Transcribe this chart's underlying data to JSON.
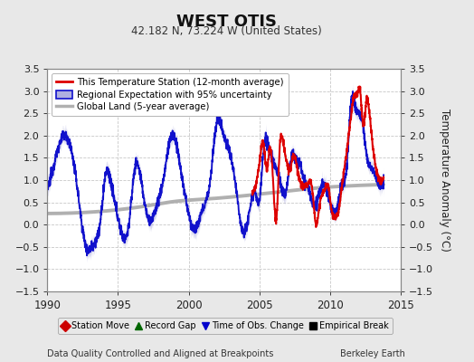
{
  "title": "WEST OTIS",
  "subtitle": "42.182 N, 73.224 W (United States)",
  "xlabel_bottom": "Data Quality Controlled and Aligned at Breakpoints",
  "xlabel_right": "Berkeley Earth",
  "ylabel": "Temperature Anomaly (°C)",
  "xlim": [
    1990,
    2015
  ],
  "ylim": [
    -1.5,
    3.5
  ],
  "yticks": [
    -1.5,
    -1.0,
    -0.5,
    0.0,
    0.5,
    1.0,
    1.5,
    2.0,
    2.5,
    3.0,
    3.5
  ],
  "xticks": [
    1990,
    1995,
    2000,
    2005,
    2010,
    2015
  ],
  "bg_color": "#e8e8e8",
  "plot_bg_color": "#ffffff",
  "grid_color": "#c8c8c8",
  "red_line_color": "#dd0000",
  "blue_line_color": "#1111cc",
  "blue_fill_color": "#b0b0e0",
  "gray_line_color": "#b0b0b0",
  "legend1_entries": [
    "This Temperature Station (12-month average)",
    "Regional Expectation with 95% uncertainty",
    "Global Land (5-year average)"
  ],
  "legend2_entries": [
    "Station Move",
    "Record Gap",
    "Time of Obs. Change",
    "Empirical Break"
  ],
  "legend2_colors": [
    "#cc0000",
    "#006600",
    "#0000cc",
    "#000000"
  ],
  "legend2_markers": [
    "D",
    "^",
    "v",
    "s"
  ]
}
